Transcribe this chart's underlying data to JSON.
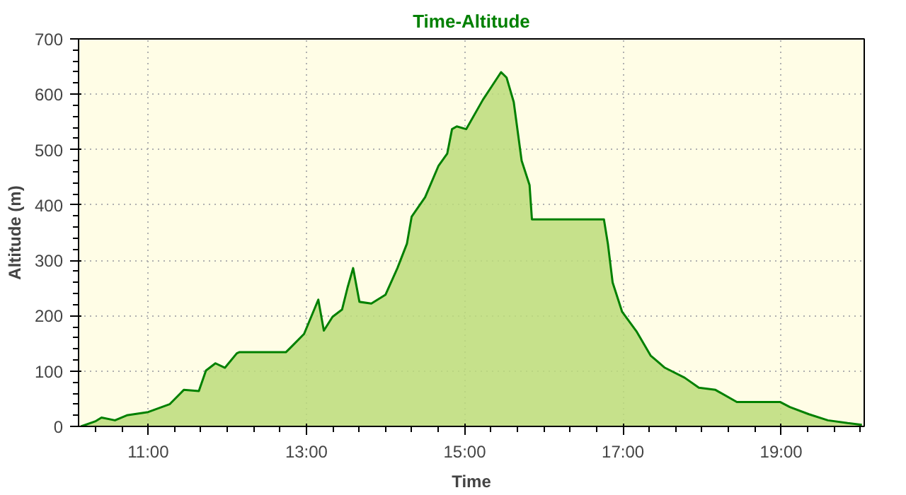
{
  "chart_data": {
    "type": "area",
    "title": "Time-Altitude",
    "xlabel": "Time",
    "ylabel": "Altitude (m)",
    "x": [
      10.15,
      10.33,
      10.41,
      10.58,
      10.73,
      11.0,
      11.27,
      11.45,
      11.64,
      11.73,
      11.85,
      11.97,
      12.12,
      12.15,
      12.74,
      12.79,
      12.97,
      13.15,
      13.22,
      13.33,
      13.45,
      13.52,
      13.59,
      13.67,
      13.82,
      14.0,
      14.15,
      14.27,
      14.33,
      14.5,
      14.67,
      14.78,
      14.84,
      14.9,
      15.02,
      15.23,
      15.35,
      15.46,
      15.53,
      15.62,
      15.72,
      15.82,
      15.85,
      16.76,
      16.81,
      16.87,
      16.99,
      17.17,
      17.35,
      17.53,
      17.78,
      17.96,
      18.17,
      18.44,
      18.5,
      18.99,
      19.11,
      19.35,
      19.59,
      19.84,
      20.02
    ],
    "series": [
      {
        "color": "#008000",
        "values": [
          0,
          9,
          16,
          11,
          20,
          26,
          40,
          66,
          64,
          101,
          114,
          106,
          132,
          134,
          134,
          141,
          167,
          229,
          173,
          198,
          211,
          251,
          286,
          225,
          222,
          238,
          286,
          330,
          379,
          414,
          471,
          493,
          537,
          542,
          537,
          590,
          616,
          640,
          630,
          586,
          480,
          436,
          374,
          374,
          330,
          260,
          207,
          172,
          128,
          106,
          88,
          70,
          66,
          44,
          44,
          44,
          35,
          22,
          11,
          6,
          3
        ]
      }
    ],
    "xlim": [
      10.12,
      20.05
    ],
    "ylim": [
      0,
      700
    ],
    "xticks": [
      {
        "value": 11,
        "label": "11:00"
      },
      {
        "value": 13,
        "label": "13:00"
      },
      {
        "value": 15,
        "label": "15:00"
      },
      {
        "value": 17,
        "label": "17:00"
      },
      {
        "value": 19,
        "label": "19:00"
      }
    ],
    "yticks": [
      0,
      100,
      200,
      300,
      400,
      500,
      600,
      700
    ],
    "grid": true
  }
}
